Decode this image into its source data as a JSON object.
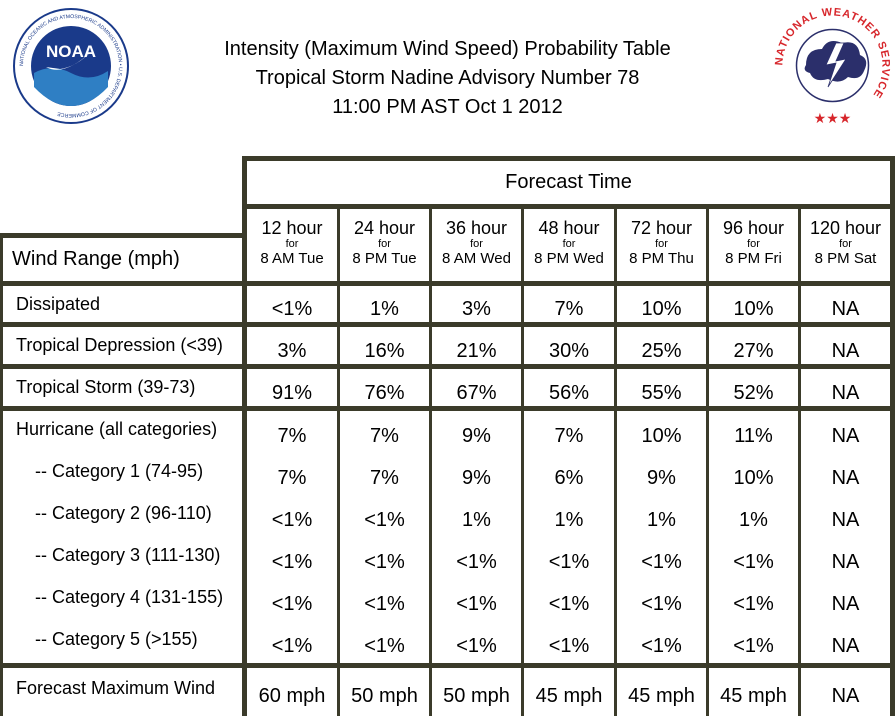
{
  "header": {
    "title_line1": "Intensity (Maximum Wind Speed) Probability Table",
    "title_line2": "Tropical Storm Nadine Advisory Number 78",
    "title_line3": "11:00 PM AST Oct 1 2012",
    "noaa_logo_text": "NOAA",
    "noaa_ring_text": "NATIONAL OCEANIC AND ATMOSPHERIC ADMINISTRATION • U.S. DEPARTMENT OF COMMERCE",
    "nws_ring_text": "NATIONAL WEATHER SERVICE"
  },
  "table": {
    "forecast_time_label": "Forecast Time",
    "wind_range_label": "Wind Range (mph)",
    "columns": [
      {
        "hour": "12 hour",
        "for": "for",
        "time": "8 AM Tue"
      },
      {
        "hour": "24 hour",
        "for": "for",
        "time": "8 PM Tue"
      },
      {
        "hour": "36 hour",
        "for": "for",
        "time": "8 AM Wed"
      },
      {
        "hour": "48 hour",
        "for": "for",
        "time": "8 PM Wed"
      },
      {
        "hour": "72 hour",
        "for": "for",
        "time": "8 PM Thu"
      },
      {
        "hour": "96 hour",
        "for": "for",
        "time": "8 PM Fri"
      },
      {
        "hour": "120 hour",
        "for": "for",
        "time": "8 PM Sat"
      }
    ],
    "rows": [
      {
        "label": "Dissipated",
        "values": [
          "<1%",
          "1%",
          "3%",
          "7%",
          "10%",
          "10%",
          "NA"
        ]
      },
      {
        "label": "Tropical Depression (<39)",
        "values": [
          "3%",
          "16%",
          "21%",
          "30%",
          "25%",
          "27%",
          "NA"
        ]
      },
      {
        "label": "Tropical Storm (39-73)",
        "values": [
          "91%",
          "76%",
          "67%",
          "56%",
          "55%",
          "52%",
          "NA"
        ]
      }
    ],
    "hurricane_rows": [
      {
        "label": "Hurricane (all categories)",
        "values": [
          "7%",
          "7%",
          "9%",
          "7%",
          "10%",
          "11%",
          "NA"
        ]
      },
      {
        "label": "-- Category 1 (74-95)",
        "values": [
          "7%",
          "7%",
          "9%",
          "6%",
          "9%",
          "10%",
          "NA"
        ]
      },
      {
        "label": "-- Category 2 (96-110)",
        "values": [
          "<1%",
          "<1%",
          "1%",
          "1%",
          "1%",
          "1%",
          "NA"
        ]
      },
      {
        "label": "-- Category 3 (111-130)",
        "values": [
          "<1%",
          "<1%",
          "<1%",
          "<1%",
          "<1%",
          "<1%",
          "NA"
        ]
      },
      {
        "label": "-- Category 4 (131-155)",
        "values": [
          "<1%",
          "<1%",
          "<1%",
          "<1%",
          "<1%",
          "<1%",
          "NA"
        ]
      },
      {
        "label": "-- Category 5 (>155)",
        "values": [
          "<1%",
          "<1%",
          "<1%",
          "<1%",
          "<1%",
          "<1%",
          "NA"
        ]
      }
    ],
    "max_wind_row": {
      "label": "Forecast Maximum Wind",
      "values": [
        "60 mph",
        "50 mph",
        "50 mph",
        "45 mph",
        "45 mph",
        "45 mph",
        "NA"
      ]
    }
  },
  "colors": {
    "border": "#3b3b2a",
    "noaa_blue": "#1a3a8a",
    "nws_red": "#d7262b",
    "nws_navy": "#2b2f6b"
  }
}
